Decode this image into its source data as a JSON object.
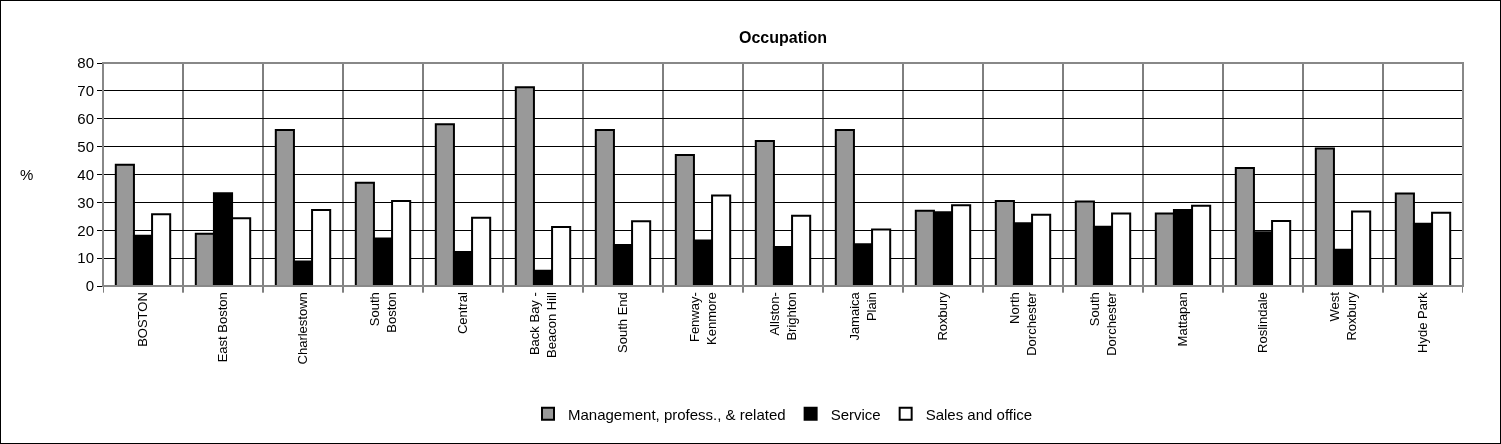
{
  "chart_data": {
    "type": "bar",
    "title": "Occupation",
    "ylabel": "%",
    "categories": [
      "BOSTON",
      "East Boston",
      "Charlestown",
      "South Boston",
      "Central",
      "Back Bay - Beacon Hill",
      "South End",
      "Fenway-Kenmore",
      "Allston-Brighton",
      "Jamaica Plain",
      "Roxbury",
      "North Dorchester",
      "South Dorchester",
      "Mattapan",
      "Roslindale",
      "West Roxbury",
      "Hyde Park"
    ],
    "series": [
      {
        "name": "Management, profess., & related",
        "color": "#999999",
        "values": [
          43.5,
          18.7,
          56,
          37,
          58,
          71.3,
          56,
          47,
          52,
          56,
          27,
          30.5,
          30.3,
          26,
          42.3,
          49.3,
          33.2
        ]
      },
      {
        "name": "Service",
        "color": "#000000",
        "values": [
          18,
          33.3,
          8.8,
          17,
          12.2,
          5.5,
          14.7,
          16.3,
          14,
          15,
          26.5,
          22.5,
          21.3,
          27.3,
          19.3,
          13,
          22.3
        ]
      },
      {
        "name": "Sales and office",
        "color": "#ffffff",
        "values": [
          25.7,
          24.3,
          27.3,
          30.5,
          24.5,
          21.2,
          23.2,
          32.5,
          25.2,
          20.3,
          29,
          25.6,
          26,
          28.8,
          23.3,
          26.7,
          26.3
        ]
      }
    ],
    "ylim": [
      0,
      80
    ],
    "yticks": [
      0,
      10,
      20,
      30,
      40,
      50,
      60,
      70,
      80
    ],
    "grid": true,
    "legend": "bottom"
  }
}
